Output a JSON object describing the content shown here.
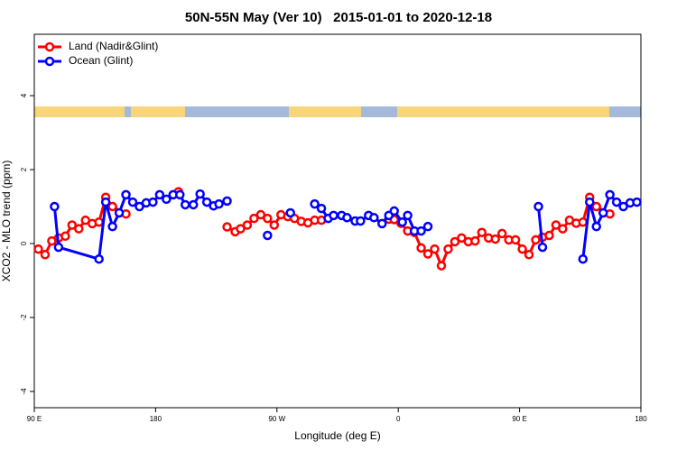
{
  "chart_data": {
    "type": "line",
    "title": "50N-55N May (Ver 10)   2015-01-01 to 2020-12-18",
    "xlabel": "Longitude (deg E)",
    "ylabel": "XCO2 - MLO trend (ppm)",
    "xlim": [
      90,
      540
    ],
    "ylim": [
      -4.44,
      5.66
    ],
    "xticks": [
      {
        "value": 90,
        "label": "90 E"
      },
      180,
      {
        "value": 270,
        "label": "90 W"
      },
      {
        "value": 360,
        "label": "0"
      },
      {
        "value": 450,
        "label": "90 E"
      },
      {
        "value": 540,
        "label": "180"
      }
    ],
    "yticks": [
      -4,
      -2,
      0,
      2,
      4
    ],
    "legend": "top-left",
    "series": [
      {
        "name": "Land (Nadir&Glint)",
        "color": "#ff0000",
        "x": [
          93,
          98,
          103,
          108,
          113,
          118,
          123,
          128,
          133,
          138,
          143,
          148,
          158,
          null,
          197,
          null,
          233,
          239,
          243,
          248,
          253,
          258,
          263,
          268,
          273,
          278,
          283,
          288,
          293,
          298,
          303,
          null,
          353,
          357,
          362,
          367,
          372,
          377,
          382,
          387,
          392,
          397,
          402,
          407,
          412,
          417,
          422,
          427,
          432,
          437,
          442,
          447,
          452,
          457,
          462,
          467,
          472,
          477,
          482,
          487,
          492,
          497,
          502,
          507,
          517
        ],
        "values": [
          -0.15,
          -0.3,
          0.07,
          0.15,
          0.2,
          0.5,
          0.4,
          0.63,
          0.54,
          0.58,
          1.25,
          1.0,
          0.8,
          null,
          1.4,
          null,
          0.45,
          0.32,
          0.4,
          0.5,
          0.68,
          0.78,
          0.68,
          0.5,
          0.78,
          0.73,
          0.68,
          0.6,
          0.56,
          0.63,
          0.63,
          null,
          0.66,
          0.65,
          0.55,
          0.34,
          0.3,
          -0.12,
          -0.28,
          -0.15,
          -0.6,
          -0.15,
          0.05,
          0.15,
          0.05,
          0.07,
          0.3,
          0.15,
          0.12,
          0.27,
          0.1,
          0.1,
          -0.15,
          -0.3,
          0.1,
          0.17,
          0.22,
          0.5,
          0.4,
          0.63,
          0.55,
          0.58,
          1.25,
          1.0,
          0.8
        ]
      },
      {
        "name": "Ocean (Glint)",
        "color": "#0000ff",
        "x": [
          105,
          108,
          138,
          143,
          148,
          153,
          158,
          163,
          168,
          173,
          178,
          183,
          188,
          193,
          198,
          202,
          208,
          213,
          218,
          223,
          227,
          233,
          null,
          263,
          null,
          280,
          null,
          298,
          303,
          308,
          312,
          318,
          322,
          328,
          332,
          338,
          342,
          348,
          353,
          357,
          363,
          367,
          372,
          377,
          382,
          null,
          464,
          467,
          null,
          497,
          502,
          507,
          512,
          517,
          522,
          527,
          532,
          537
        ],
        "values": [
          1.0,
          -0.1,
          -0.42,
          1.12,
          0.46,
          0.83,
          1.32,
          1.12,
          1.0,
          1.1,
          1.12,
          1.32,
          1.2,
          1.32,
          1.32,
          1.05,
          1.05,
          1.34,
          1.12,
          1.02,
          1.07,
          1.15,
          null,
          0.22,
          null,
          0.83,
          null,
          1.07,
          0.95,
          0.68,
          0.76,
          0.76,
          0.7,
          0.61,
          0.61,
          0.76,
          0.7,
          0.54,
          0.76,
          0.88,
          0.58,
          0.76,
          0.34,
          0.34,
          0.46,
          null,
          1.0,
          -0.1,
          null,
          -0.42,
          1.12,
          0.46,
          0.83,
          1.32,
          1.12,
          1.0,
          1.1,
          1.12
        ]
      }
    ]
  }
}
